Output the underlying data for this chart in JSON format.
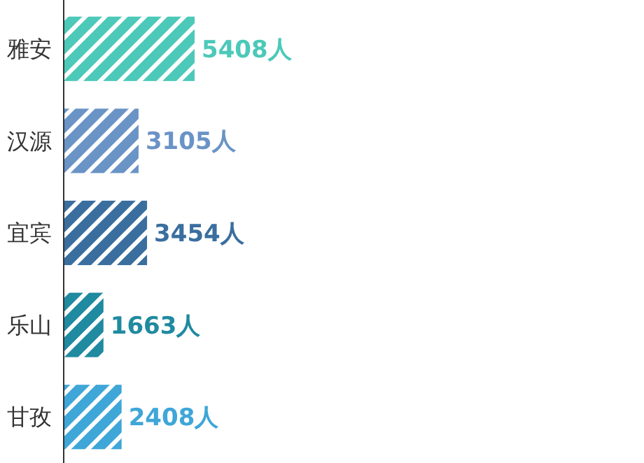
{
  "chart_data": {
    "type": "bar",
    "orientation": "horizontal",
    "categories": [
      "雅安",
      "汉源",
      "宜宾",
      "乐山",
      "甘孜"
    ],
    "values": [
      5408,
      3105,
      3454,
      1663,
      2408
    ],
    "value_labels": [
      "5408人",
      "3105人",
      "3454人",
      "1663人",
      "2408人"
    ],
    "colors": [
      "#4cc9b8",
      "#6a93c6",
      "#3a6e9e",
      "#1f8aa0",
      "#3fa6d8"
    ]
  }
}
